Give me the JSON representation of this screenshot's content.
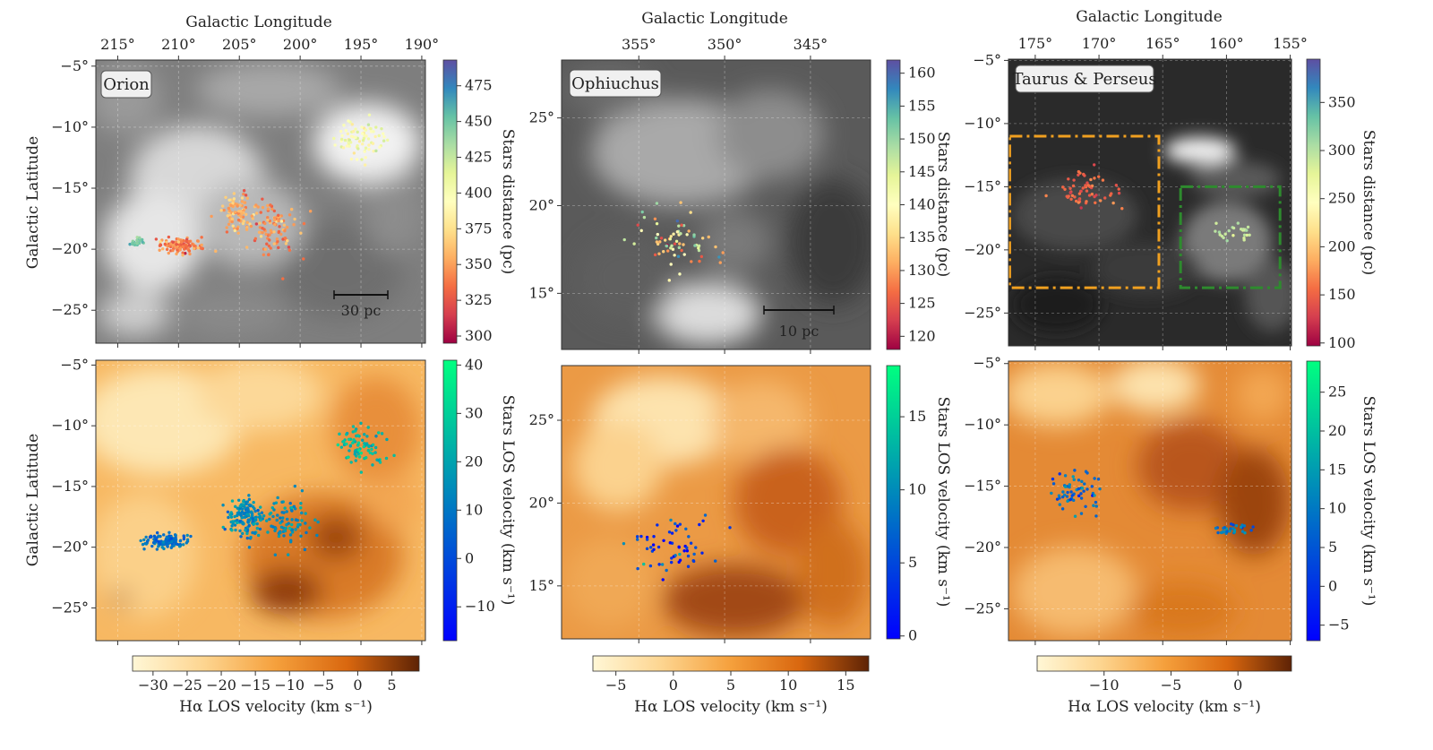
{
  "figure": {
    "columns": [
      {
        "region_label": "Orion",
        "top_xlabel": "Galactic Longitude",
        "ylabel": "Galactic Latitude",
        "x_ticks": [
          "215°",
          "210°",
          "205°",
          "200°",
          "195°",
          "190°"
        ],
        "x_tick_values": [
          215,
          210,
          205,
          200,
          195,
          190
        ],
        "y_ticks": [
          "−5°",
          "−10°",
          "−15°",
          "−20°",
          "−25°"
        ],
        "y_tick_values": [
          -5,
          -10,
          -15,
          -20,
          -25
        ],
        "xlim": [
          216.8,
          189.7
        ],
        "ylim_top": [
          -27.7,
          -4.5
        ],
        "ylim_bottom": [
          -27.7,
          -4.6
        ],
        "scalebar": "30 pc",
        "dist_cbar": {
          "label": "Stars distance (pc)",
          "ticks": [
            "475",
            "450",
            "425",
            "400",
            "375",
            "350",
            "325",
            "300"
          ],
          "values": [
            475,
            450,
            425,
            400,
            375,
            350,
            325,
            300
          ],
          "min": 295,
          "max": 493
        },
        "vel_cbar": {
          "label": "Stars LOS velocity (km s⁻¹)",
          "ticks": [
            "40",
            "30",
            "20",
            "10",
            "0",
            "−10"
          ],
          "values": [
            40,
            30,
            20,
            10,
            0,
            -10
          ],
          "min": -17,
          "max": 41
        },
        "ha_cbar": {
          "label": "Hα LOS velocity (km s⁻¹)",
          "ticks": [
            "−30",
            "−25",
            "−20",
            "−15",
            "−10",
            "−5",
            "0",
            "5"
          ],
          "values": [
            -30,
            -25,
            -20,
            -15,
            -10,
            -5,
            0,
            5
          ],
          "min": -33,
          "max": 9
        }
      },
      {
        "region_label": "Ophiuchus",
        "top_xlabel": "Galactic Longitude",
        "ylabel": "",
        "x_ticks": [
          "355°",
          "350°",
          "345°"
        ],
        "x_tick_values": [
          355,
          350,
          345
        ],
        "y_ticks": [
          "25°",
          "20°",
          "15°"
        ],
        "y_tick_values": [
          25,
          20,
          15
        ],
        "xlim": [
          359.5,
          341.5
        ],
        "ylim_top": [
          11.8,
          28.3
        ],
        "ylim_bottom": [
          11.8,
          28.3
        ],
        "scalebar": "10 pc",
        "dist_cbar": {
          "label": "Stars distance (pc)",
          "ticks": [
            "160",
            "155",
            "150",
            "145",
            "140",
            "135",
            "130",
            "125",
            "120"
          ],
          "values": [
            160,
            155,
            150,
            145,
            140,
            135,
            130,
            125,
            120
          ],
          "min": 118,
          "max": 162
        },
        "vel_cbar": {
          "label": "Stars LOS velocity (km s⁻¹)",
          "ticks": [
            "15",
            "10",
            "5",
            "0"
          ],
          "values": [
            15,
            10,
            5,
            0
          ],
          "min": -0.2,
          "max": 18.5
        },
        "ha_cbar": {
          "label": "Hα LOS velocity (km s⁻¹)",
          "ticks": [
            "−5",
            "0",
            "5",
            "10",
            "15"
          ],
          "values": [
            -5,
            0,
            5,
            10,
            15
          ],
          "min": -7,
          "max": 17
        }
      },
      {
        "region_label": "Taurus & Perseus",
        "top_xlabel": "Galactic Longitude",
        "ylabel": "",
        "x_ticks": [
          "175°",
          "170°",
          "165°",
          "160°",
          "155°"
        ],
        "x_tick_values": [
          175,
          170,
          165,
          160,
          155
        ],
        "y_ticks": [
          "−5°",
          "−10°",
          "−15°",
          "−20°",
          "−25°"
        ],
        "y_tick_values": [
          -5,
          -10,
          -15,
          -20,
          -25
        ],
        "xlim": [
          177.1,
          154.9
        ],
        "ylim_top": [
          -27.6,
          -4.9
        ],
        "ylim_bottom": [
          -27.6,
          -4.8
        ],
        "scalebar": "",
        "dist_cbar": {
          "label": "Stars distance (pc)",
          "ticks": [
            "350",
            "300",
            "250",
            "200",
            "150",
            "100"
          ],
          "values": [
            350,
            300,
            250,
            200,
            150,
            100
          ],
          "min": 97,
          "max": 395
        },
        "vel_cbar": {
          "label": "Stars LOS velocity (km s⁻¹)",
          "ticks": [
            "25",
            "20",
            "15",
            "10",
            "5",
            "0",
            "−5"
          ],
          "values": [
            25,
            20,
            15,
            10,
            5,
            0,
            -5
          ],
          "min": -7,
          "max": 29
        },
        "ha_cbar": {
          "label": "Hα LOS velocity (km s⁻¹)",
          "ticks": [
            "−10",
            "−5",
            "0"
          ],
          "values": [
            -10,
            -5,
            0
          ],
          "min": -15,
          "max": 4
        }
      }
    ]
  },
  "chart_data": [
    {
      "type": "scatter",
      "panel": "Orion (top)",
      "xlabel": "Galactic Longitude",
      "ylabel": "Galactic Latitude",
      "colorbar": "Stars distance (pc)",
      "clusters": [
        {
          "l": 195.0,
          "b": -11.0,
          "n": 80,
          "dist": 400
        },
        {
          "l": 210.0,
          "b": -19.7,
          "n": 120,
          "dist": 340
        },
        {
          "l": 205.0,
          "b": -17.0,
          "n": 90,
          "dist": 355
        },
        {
          "l": 202.0,
          "b": -18.0,
          "n": 100,
          "dist": 345
        },
        {
          "l": 213.5,
          "b": -19.5,
          "n": 25,
          "dist": 445
        }
      ]
    },
    {
      "type": "heatmap",
      "panel": "Orion (bottom)",
      "colorbar": "Hα LOS velocity (km s⁻¹)",
      "overlay_scatter": "Stars LOS velocity (km s⁻¹)",
      "clusters": [
        {
          "l": 195.0,
          "b": -11.5,
          "n": 80,
          "vel": 25
        },
        {
          "l": 211.0,
          "b": -19.5,
          "n": 120,
          "vel": 8
        },
        {
          "l": 204.5,
          "b": -17.5,
          "n": 150,
          "vel": 15
        },
        {
          "l": 201.0,
          "b": -18.0,
          "n": 80,
          "vel": 15
        }
      ]
    },
    {
      "type": "scatter",
      "panel": "Ophiuchus (top)",
      "colorbar": "Stars distance (pc)",
      "clusters": [
        {
          "l": 353.0,
          "b": 17.8,
          "n": 70,
          "dist": 138
        }
      ]
    },
    {
      "type": "heatmap",
      "panel": "Ophiuchus (bottom)",
      "colorbar": "Hα LOS velocity (km s⁻¹)",
      "overlay_scatter": "Stars LOS velocity (km s⁻¹)",
      "clusters": [
        {
          "l": 353.0,
          "b": 17.5,
          "n": 60,
          "vel": 4
        }
      ]
    },
    {
      "type": "scatter",
      "panel": "Taurus & Perseus (top)",
      "colorbar": "Stars distance (pc)",
      "clusters": [
        {
          "l": 171.0,
          "b": -15.5,
          "n": 60,
          "dist": 145
        },
        {
          "l": 159.0,
          "b": -18.5,
          "n": 25,
          "dist": 290
        }
      ],
      "regions": [
        {
          "color": "#f0a020",
          "l": [
            177.0,
            165.3
          ],
          "b": [
            -11.0,
            -23.0
          ]
        },
        {
          "color": "#2e8b2e",
          "l": [
            163.6,
            155.8
          ],
          "b": [
            -15.0,
            -23.0
          ]
        }
      ]
    },
    {
      "type": "heatmap",
      "panel": "Taurus & Perseus (bottom)",
      "colorbar": "Hα LOS velocity (km s⁻¹)",
      "overlay_scatter": "Stars LOS velocity (km s⁻¹)",
      "clusters": [
        {
          "l": 172.0,
          "b": -15.5,
          "n": 60,
          "vel": 8
        },
        {
          "l": 159.5,
          "b": -18.5,
          "n": 30,
          "vel": 10
        }
      ]
    }
  ]
}
